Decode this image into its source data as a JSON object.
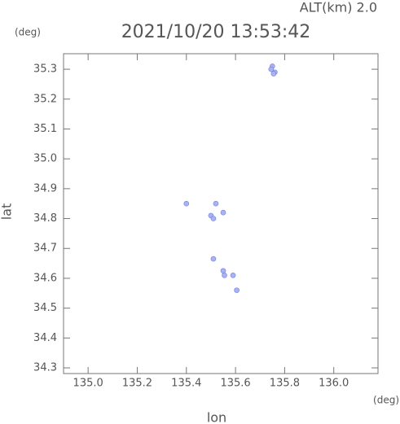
{
  "chart_data": {
    "type": "scatter",
    "title": "2021/10/20 13:53:42",
    "annotation": "ALT(km) 2.0",
    "y_unit": "(deg)",
    "x_unit": "(deg)",
    "x_label": "lon",
    "y_label": "lat",
    "x": [
      135.75,
      135.76,
      135.745,
      135.755,
      135.4,
      135.52,
      135.5,
      135.51,
      135.55,
      135.51,
      135.55,
      135.59,
      135.555,
      135.605
    ],
    "values": [
      35.31,
      35.29,
      35.3,
      35.285,
      34.85,
      34.85,
      34.81,
      34.8,
      34.82,
      34.665,
      34.625,
      34.61,
      34.61,
      34.56
    ],
    "color": "#a9b2f5",
    "xlim": [
      134.9,
      136.18
    ],
    "ylim": [
      34.281,
      35.352
    ],
    "xticks": [
      {
        "value": 135.0,
        "label": "135.0"
      },
      135.2,
      135.4,
      135.6,
      135.8,
      {
        "value": 136.0,
        "label": "136.0"
      }
    ],
    "yticks": [
      34.3,
      34.4,
      34.5,
      34.6,
      34.7,
      34.8,
      34.9,
      {
        "value": 35.0,
        "label": "35.0"
      },
      35.1,
      35.2,
      35.3
    ],
    "grid": false
  }
}
